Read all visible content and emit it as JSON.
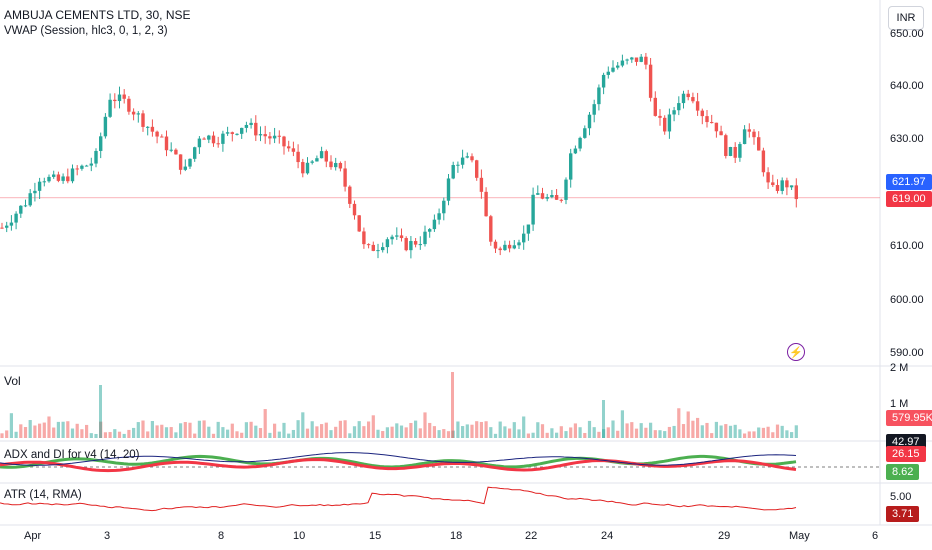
{
  "symbol_title": "AMBUJA CEMENTS LTD, 30, NSE",
  "vwap_label": "VWAP (Session, hlc3, 0, 1, 2, 3)",
  "currency": "INR",
  "price_axis": [
    "650.00",
    "640.00",
    "630.00",
    "620.00",
    "610.00",
    "600.00",
    "590.00"
  ],
  "price_tags": {
    "vwap": "621.97",
    "last": "619.00"
  },
  "volume": {
    "label": "Vol",
    "axis": [
      "2 M",
      "1 M"
    ],
    "last": "579.95K"
  },
  "adx": {
    "label": "ADX and DI for v4 (14, 20)",
    "tags": [
      "42.97",
      "26.15",
      "8.62"
    ]
  },
  "atr": {
    "label": "ATR (14, RMA)",
    "axis": "5.00",
    "last": "3.71"
  },
  "time_axis": [
    "Apr",
    "3",
    "8",
    "10",
    "15",
    "18",
    "22",
    "24",
    "29",
    "May",
    "6"
  ],
  "colors": {
    "up": "#26a69a",
    "down": "#ef5350",
    "vwap_tag": "#2962ff",
    "last_tag": "#f23645",
    "vol_tag": "#f7525f",
    "adx_tag": "#131722",
    "di_plus": "#4caf50",
    "atr_line": "#e02020",
    "bolt": "#7b1fa2"
  },
  "icons": {
    "event": "lightning-bolt-icon"
  }
}
